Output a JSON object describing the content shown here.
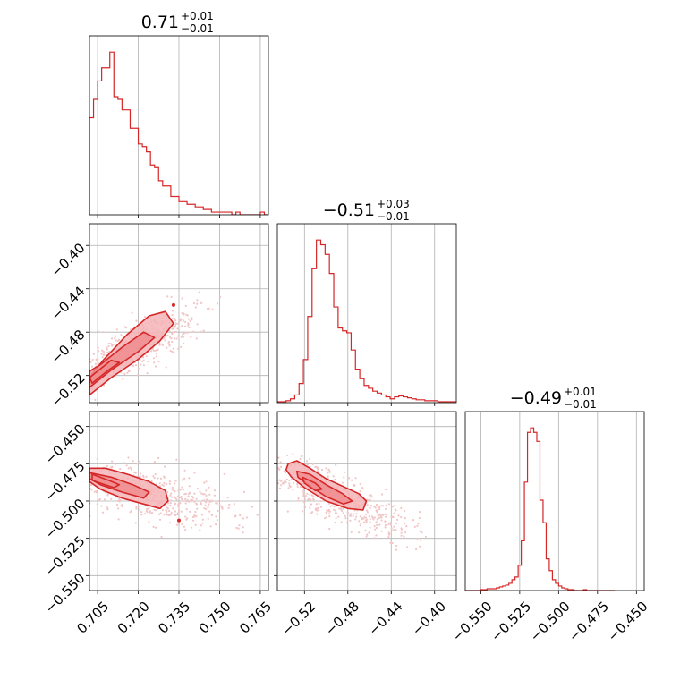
{
  "figure": {
    "type": "corner-plot"
  },
  "colors": {
    "accent": "#d62728",
    "fill_light": "#f5b4b6",
    "fill_mid": "#ee8c8e",
    "scatter": "#f1c6c7"
  },
  "titles": [
    {
      "median": "0.71",
      "plus": "+0.01",
      "minus": "−0.01"
    },
    {
      "median": "−0.51",
      "plus": "+0.03",
      "minus": "−0.01"
    },
    {
      "median": "−0.49",
      "plus": "+0.01",
      "minus": "−0.01"
    }
  ],
  "chart_data": [
    {
      "type": "histogram",
      "name": "hist-param-1",
      "xlim": [
        0.702,
        0.768
      ],
      "xticks": [
        0.705,
        0.72,
        0.735,
        0.75,
        0.765
      ],
      "grid": true,
      "bin_edges_start": 0.702,
      "bin_width": 0.0015,
      "counts": [
        37,
        44,
        51,
        56,
        56,
        62,
        45,
        44,
        40,
        40,
        33,
        33,
        27,
        26,
        24,
        19,
        18,
        13,
        11,
        11,
        7,
        7,
        5,
        5,
        4,
        4,
        3,
        3,
        2,
        2,
        1,
        1,
        1,
        1,
        1,
        0,
        1,
        0,
        0,
        0,
        0,
        0,
        1,
        0
      ]
    },
    {
      "type": "histogram",
      "name": "hist-param-2",
      "xlim": [
        -0.545,
        -0.38
      ],
      "xticks": [
        -0.52,
        -0.48,
        -0.44,
        -0.4
      ],
      "grid": true,
      "bin_edges_start": -0.545,
      "bin_width": 0.004,
      "counts": [
        1,
        1,
        2,
        4,
        8,
        20,
        45,
        90,
        140,
        170,
        165,
        155,
        135,
        100,
        78,
        75,
        73,
        55,
        35,
        25,
        18,
        15,
        12,
        10,
        8,
        6,
        4,
        6,
        7,
        6,
        5,
        4,
        3,
        3,
        2,
        2,
        2,
        1,
        1,
        1,
        1
      ]
    },
    {
      "type": "histogram",
      "name": "hist-param-3",
      "xlim": [
        -0.56,
        -0.445
      ],
      "xticks": [
        -0.55,
        -0.525,
        -0.5,
        -0.475,
        -0.45
      ],
      "grid": true,
      "bin_edges_start": -0.56,
      "bin_width": 0.002,
      "counts": [
        0,
        0,
        0,
        0,
        0,
        1,
        1,
        2,
        2,
        2,
        3,
        4,
        5,
        6,
        8,
        12,
        15,
        28,
        55,
        120,
        175,
        180,
        175,
        165,
        100,
        75,
        35,
        22,
        12,
        8,
        5,
        3,
        2,
        1,
        1,
        0,
        0,
        0,
        1,
        0,
        0,
        0,
        0,
        0,
        0,
        0,
        0,
        0
      ]
    },
    {
      "type": "contour-2d",
      "name": "corner-param-1-vs-2",
      "xlim": [
        0.702,
        0.768
      ],
      "ylim": [
        -0.545,
        -0.38
      ],
      "xticks": [
        0.705,
        0.72,
        0.735,
        0.75,
        0.765
      ],
      "yticks": [
        -0.4,
        -0.44,
        -0.48,
        -0.52
      ],
      "ytick_labels": [
        "−0.40",
        "−0.44",
        "−0.48",
        "−0.52"
      ],
      "grid": true,
      "scatter_seed": 11,
      "scatter_ellipse": {
        "cx": 0.72,
        "cy": -0.492,
        "major": 0.032,
        "minor": 0.007,
        "angle_axis": [
          0.0255,
          0.0455
        ]
      },
      "contour_outer": [
        [
          0.702,
          -0.538
        ],
        [
          0.71,
          -0.522
        ],
        [
          0.72,
          -0.505
        ],
        [
          0.728,
          -0.488
        ],
        [
          0.733,
          -0.472
        ],
        [
          0.73,
          -0.461
        ],
        [
          0.724,
          -0.465
        ],
        [
          0.716,
          -0.482
        ],
        [
          0.707,
          -0.506
        ],
        [
          0.702,
          -0.522
        ]
      ],
      "contour_inner": [
        [
          0.702,
          -0.531
        ],
        [
          0.71,
          -0.515
        ],
        [
          0.72,
          -0.498
        ],
        [
          0.726,
          -0.485
        ],
        [
          0.722,
          -0.48
        ],
        [
          0.714,
          -0.494
        ],
        [
          0.706,
          -0.51
        ],
        [
          0.702,
          -0.516
        ]
      ],
      "contour_core": [
        [
          0.703,
          -0.527
        ],
        [
          0.709,
          -0.515
        ],
        [
          0.713,
          -0.508
        ],
        [
          0.71,
          -0.506
        ],
        [
          0.705,
          -0.516
        ],
        [
          0.702,
          -0.522
        ]
      ],
      "blip": [
        0.733,
        -0.455
      ]
    },
    {
      "type": "contour-2d",
      "name": "corner-param-1-vs-3",
      "xlim": [
        0.702,
        0.768
      ],
      "ylim": [
        -0.56,
        -0.44
      ],
      "xticks": [
        0.705,
        0.72,
        0.735,
        0.75,
        0.765
      ],
      "yticks": [
        -0.45,
        -0.475,
        -0.5,
        -0.525,
        -0.55
      ],
      "xtick_labels": [
        "0.705",
        "0.720",
        "0.735",
        "0.750",
        "0.765"
      ],
      "ytick_labels": [
        "−0.450",
        "−0.475",
        "−0.500",
        "−0.525",
        "−0.550"
      ],
      "grid": true,
      "scatter_seed": 23,
      "scatter_ellipse": {
        "cx": 0.722,
        "cy": -0.494,
        "major": 0.03,
        "minor": 0.009,
        "angle_axis": [
          0.03,
          -0.018
        ]
      },
      "contour_outer": [
        [
          0.702,
          -0.478
        ],
        [
          0.708,
          -0.478
        ],
        [
          0.716,
          -0.482
        ],
        [
          0.724,
          -0.487
        ],
        [
          0.73,
          -0.493
        ],
        [
          0.731,
          -0.5
        ],
        [
          0.728,
          -0.505
        ],
        [
          0.722,
          -0.502
        ],
        [
          0.714,
          -0.498
        ],
        [
          0.706,
          -0.492
        ],
        [
          0.702,
          -0.487
        ]
      ],
      "contour_inner": [
        [
          0.702,
          -0.481
        ],
        [
          0.71,
          -0.484
        ],
        [
          0.718,
          -0.489
        ],
        [
          0.724,
          -0.494
        ],
        [
          0.722,
          -0.498
        ],
        [
          0.714,
          -0.494
        ],
        [
          0.706,
          -0.489
        ],
        [
          0.702,
          -0.485
        ]
      ],
      "contour_core": [
        [
          0.703,
          -0.482
        ],
        [
          0.709,
          -0.486
        ],
        [
          0.713,
          -0.489
        ],
        [
          0.711,
          -0.491
        ],
        [
          0.706,
          -0.488
        ],
        [
          0.703,
          -0.486
        ]
      ],
      "blip": [
        0.735,
        -0.513
      ]
    },
    {
      "type": "contour-2d",
      "name": "corner-param-2-vs-3",
      "xlim": [
        -0.545,
        -0.38
      ],
      "ylim": [
        -0.56,
        -0.44
      ],
      "xticks": [
        -0.52,
        -0.48,
        -0.44,
        -0.4
      ],
      "yticks": [
        -0.45,
        -0.475,
        -0.5,
        -0.525,
        -0.55
      ],
      "xtick_labels": [
        "−0.52",
        "−0.48",
        "−0.44",
        "−0.40"
      ],
      "grid": true,
      "scatter_seed": 37,
      "scatter_ellipse": {
        "cx": -0.49,
        "cy": -0.497,
        "major": 0.06,
        "minor": 0.009,
        "angle_axis": [
          0.06,
          -0.02
        ]
      },
      "contour_outer": [
        [
          -0.535,
          -0.475
        ],
        [
          -0.527,
          -0.473
        ],
        [
          -0.515,
          -0.478
        ],
        [
          -0.5,
          -0.485
        ],
        [
          -0.485,
          -0.49
        ],
        [
          -0.47,
          -0.495
        ],
        [
          -0.463,
          -0.5
        ],
        [
          -0.466,
          -0.506
        ],
        [
          -0.48,
          -0.505
        ],
        [
          -0.5,
          -0.5
        ],
        [
          -0.52,
          -0.491
        ],
        [
          -0.532,
          -0.484
        ],
        [
          -0.537,
          -0.479
        ]
      ],
      "contour_inner": [
        [
          -0.527,
          -0.48
        ],
        [
          -0.515,
          -0.482
        ],
        [
          -0.5,
          -0.489
        ],
        [
          -0.485,
          -0.495
        ],
        [
          -0.476,
          -0.5
        ],
        [
          -0.484,
          -0.502
        ],
        [
          -0.5,
          -0.497
        ],
        [
          -0.515,
          -0.49
        ],
        [
          -0.526,
          -0.484
        ]
      ],
      "contour_core": [
        [
          -0.522,
          -0.484
        ],
        [
          -0.51,
          -0.488
        ],
        [
          -0.504,
          -0.492
        ],
        [
          -0.51,
          -0.493
        ],
        [
          -0.52,
          -0.488
        ]
      ]
    }
  ]
}
